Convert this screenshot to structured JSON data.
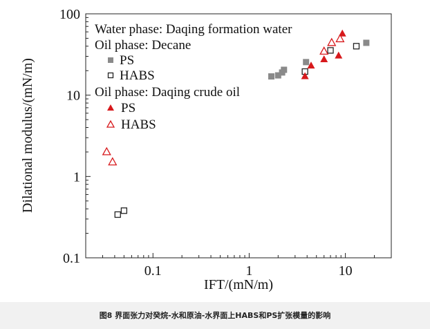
{
  "chart_data": {
    "type": "scatter",
    "xlabel": "IFT/(mN/m)",
    "ylabel": "Dilational modulus/(mN/m)",
    "x_scale": "log",
    "y_scale": "log",
    "xlim": [
      0.02,
      30
    ],
    "ylim": [
      0.1,
      100
    ],
    "x_ticks": [
      0.1,
      1,
      10
    ],
    "x_tick_labels": [
      "0.1",
      "1",
      "10"
    ],
    "y_ticks": [
      0.1,
      1,
      10,
      100
    ],
    "y_tick_labels": [
      "0.1",
      "1",
      "10",
      "100"
    ],
    "grid": false,
    "legend_position": "top-left",
    "legend": {
      "line1": "Water phase: Daqing formation water",
      "group1_title": "Oil phase: Decane",
      "group2_title": "Oil phase: Daqing crude oil"
    },
    "series": [
      {
        "name": "PS",
        "group": "Oil phase: Decane",
        "marker": "filled-square",
        "color": "#8a8a8a",
        "points": [
          [
            1.7,
            17
          ],
          [
            2.0,
            17.5
          ],
          [
            2.2,
            19
          ],
          [
            2.3,
            20.5
          ],
          [
            3.9,
            25.5
          ],
          [
            16.5,
            44
          ]
        ]
      },
      {
        "name": "HABS",
        "group": "Oil phase: Decane",
        "marker": "open-square",
        "color": "#222222",
        "points": [
          [
            0.043,
            0.34
          ],
          [
            0.05,
            0.38
          ],
          [
            3.8,
            19.5
          ],
          [
            7.0,
            35.5
          ],
          [
            13.0,
            40
          ]
        ]
      },
      {
        "name": "PS",
        "group": "Oil phase: Daqing crude oil",
        "marker": "filled-triangle",
        "color": "#d7191c",
        "points": [
          [
            3.8,
            17
          ],
          [
            4.4,
            23
          ],
          [
            6.0,
            27.5
          ],
          [
            8.5,
            30.5
          ],
          [
            9.3,
            57
          ]
        ]
      },
      {
        "name": "HABS",
        "group": "Oil phase: Daqing crude oil",
        "marker": "open-triangle",
        "color": "#d7191c",
        "points": [
          [
            0.033,
            2.0
          ],
          [
            0.038,
            1.5
          ],
          [
            6.0,
            34.5
          ],
          [
            7.2,
            44
          ],
          [
            8.8,
            49
          ]
        ]
      }
    ]
  },
  "caption": "图8   界面张力对癸烷-水和原油-水界面上HABS和PS扩张模量的影响"
}
